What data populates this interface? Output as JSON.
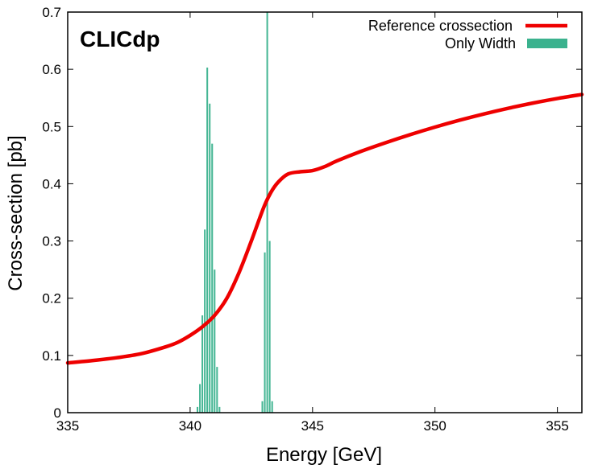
{
  "chart_data": {
    "type": "line+histogram",
    "title": "",
    "annotation": "CLICdp",
    "xlabel": "Energy [GeV]",
    "ylabel": "Cross-section [pb]",
    "xlim": [
      335,
      356
    ],
    "ylim": [
      0,
      0.7
    ],
    "xticks": [
      335,
      340,
      345,
      350,
      355
    ],
    "yticks": [
      0,
      0.1,
      0.2,
      0.3,
      0.4,
      0.5,
      0.6,
      0.7
    ],
    "xtick_labels": [
      "335",
      "340",
      "345",
      "350",
      "355"
    ],
    "ytick_labels": [
      "0",
      "0.1",
      "0.2",
      "0.3",
      "0.4",
      "0.5",
      "0.6",
      "0.7"
    ],
    "legend_position": "top-right",
    "colors": {
      "reference": "#ee0000",
      "width": "#3bb28e"
    },
    "series": [
      {
        "name": "Reference crossection",
        "kind": "line",
        "x": [
          335,
          336,
          337,
          338,
          339,
          339.5,
          340,
          340.5,
          341,
          341.5,
          342,
          342.5,
          343,
          343.3,
          343.6,
          344,
          344.5,
          345,
          345.5,
          346,
          347,
          348,
          349,
          350,
          351,
          352,
          353,
          354,
          355,
          356
        ],
        "y": [
          0.087,
          0.091,
          0.096,
          0.103,
          0.115,
          0.123,
          0.135,
          0.15,
          0.17,
          0.2,
          0.245,
          0.3,
          0.358,
          0.385,
          0.403,
          0.417,
          0.421,
          0.423,
          0.43,
          0.44,
          0.457,
          0.472,
          0.486,
          0.499,
          0.511,
          0.522,
          0.532,
          0.541,
          0.549,
          0.556
        ]
      },
      {
        "name": "Only Width",
        "kind": "histogram",
        "bin_width": 0.1,
        "bins": [
          {
            "x": 340.3,
            "y": 0.01
          },
          {
            "x": 340.4,
            "y": 0.05
          },
          {
            "x": 340.5,
            "y": 0.17
          },
          {
            "x": 340.6,
            "y": 0.32
          },
          {
            "x": 340.7,
            "y": 0.603
          },
          {
            "x": 340.8,
            "y": 0.54
          },
          {
            "x": 340.9,
            "y": 0.47
          },
          {
            "x": 341.0,
            "y": 0.25
          },
          {
            "x": 341.1,
            "y": 0.08
          },
          {
            "x": 341.2,
            "y": 0.01
          },
          {
            "x": 342.95,
            "y": 0.02
          },
          {
            "x": 343.05,
            "y": 0.28
          },
          {
            "x": 343.15,
            "y": 0.7
          },
          {
            "x": 343.25,
            "y": 0.3
          },
          {
            "x": 343.35,
            "y": 0.02
          }
        ]
      }
    ]
  }
}
